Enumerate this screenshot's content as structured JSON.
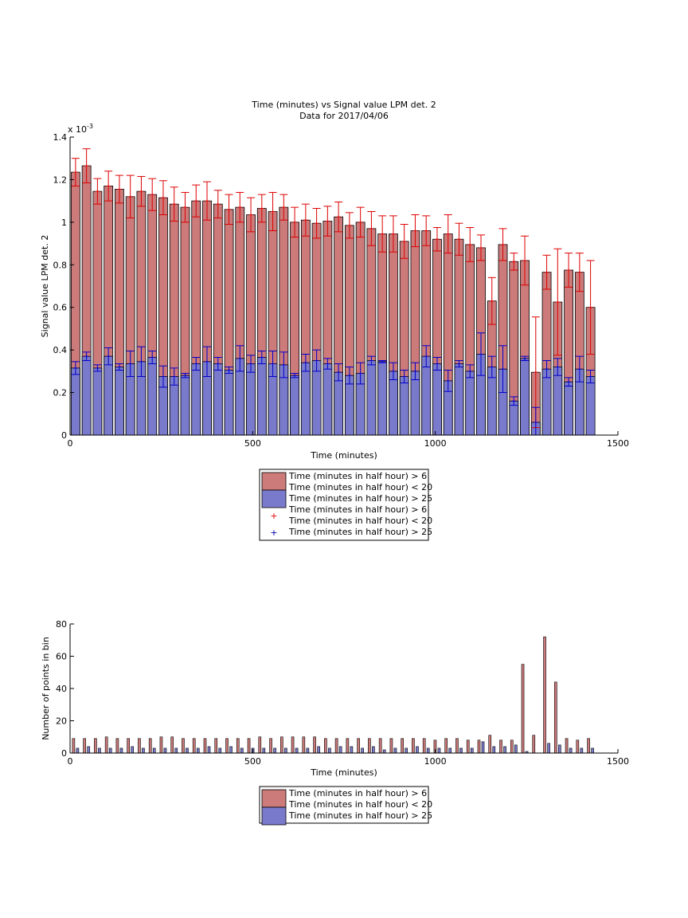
{
  "figure": {
    "title_line1": "Time (minutes) vs Signal value LPM det. 2",
    "title_line2": "Data for 2017/04/06"
  },
  "chart_data": [
    {
      "type": "bar",
      "title": "Time (minutes) vs Signal value LPM det. 2",
      "subtitle": "Data for 2017/04/06",
      "xlabel": "Time (minutes)",
      "ylabel": "Signal value LPM det. 2",
      "exponent_label": "x 10",
      "exponent_power": "-3",
      "xlim": [
        0,
        1500
      ],
      "ylim": [
        0,
        1.4
      ],
      "xticks": [
        "0",
        "500",
        "1000",
        "1500"
      ],
      "yticks": [
        "0",
        "0.2",
        "0.4",
        "0.6",
        "0.8",
        "1",
        "1.2",
        "1.4"
      ],
      "legend_placement": "below",
      "legend": [
        "Time (minutes in half hour) > 6",
        "Time (minutes in half hour) < 20",
        "Time (minutes in half hour) > 25",
        "Time (minutes in half hour) > 6",
        "Time (minutes in half hour) < 20",
        "Time (minutes in half hour) > 25"
      ],
      "x": [
        15,
        45,
        75,
        105,
        135,
        165,
        195,
        225,
        255,
        285,
        315,
        345,
        375,
        405,
        435,
        465,
        495,
        525,
        555,
        585,
        615,
        645,
        675,
        705,
        735,
        765,
        795,
        825,
        855,
        885,
        915,
        945,
        975,
        1005,
        1035,
        1065,
        1095,
        1125,
        1155,
        1185,
        1215,
        1245,
        1275,
        1305,
        1335,
        1365,
        1395,
        1425
      ],
      "series": [
        {
          "name": "Time (minutes in half hour) > 6",
          "color": "#cc7a7a",
          "values": [
            1.235,
            1.265,
            1.145,
            1.17,
            1.155,
            1.12,
            1.145,
            1.13,
            1.115,
            1.085,
            1.07,
            1.1,
            1.1,
            1.085,
            1.06,
            1.07,
            1.035,
            1.065,
            1.05,
            1.07,
            1.0,
            1.01,
            0.995,
            1.005,
            1.025,
            0.985,
            1.0,
            0.97,
            0.945,
            0.945,
            0.91,
            0.96,
            0.96,
            0.92,
            0.945,
            0.92,
            0.895,
            0.88,
            0.63,
            0.895,
            0.815,
            0.82,
            0.295,
            0.765,
            0.625,
            0.775,
            0.765,
            0.6
          ],
          "error": [
            0.065,
            0.08,
            0.06,
            0.07,
            0.065,
            0.1,
            0.07,
            0.075,
            0.08,
            0.08,
            0.07,
            0.075,
            0.09,
            0.065,
            0.07,
            0.07,
            0.08,
            0.065,
            0.09,
            0.06,
            0.07,
            0.075,
            0.07,
            0.07,
            0.07,
            0.06,
            0.07,
            0.08,
            0.085,
            0.085,
            0.08,
            0.075,
            0.07,
            0.055,
            0.09,
            0.075,
            0.08,
            0.06,
            0.11,
            0.075,
            0.04,
            0.115,
            0.26,
            0.08,
            0.25,
            0.08,
            0.09,
            0.22
          ]
        },
        {
          "name": "Time (minutes in half hour) > 25",
          "color": "#7a7acc",
          "values": [
            0.315,
            0.37,
            0.315,
            0.37,
            0.32,
            0.335,
            0.345,
            0.365,
            0.275,
            0.275,
            0.28,
            0.335,
            0.345,
            0.335,
            0.305,
            0.36,
            0.335,
            0.365,
            0.335,
            0.33,
            0.28,
            0.34,
            0.35,
            0.335,
            0.295,
            0.28,
            0.29,
            0.35,
            0.345,
            0.3,
            0.275,
            0.3,
            0.37,
            0.335,
            0.255,
            0.335,
            0.3,
            0.38,
            0.32,
            0.31,
            0.16,
            0.36,
            0.06,
            0.31,
            0.32,
            0.25,
            0.31,
            0.275
          ],
          "error": [
            0.03,
            0.02,
            0.015,
            0.04,
            0.015,
            0.06,
            0.07,
            0.03,
            0.05,
            0.04,
            0.01,
            0.03,
            0.07,
            0.03,
            0.015,
            0.06,
            0.04,
            0.03,
            0.06,
            0.06,
            0.01,
            0.04,
            0.05,
            0.025,
            0.04,
            0.04,
            0.05,
            0.02,
            0.005,
            0.04,
            0.03,
            0.04,
            0.05,
            0.03,
            0.05,
            0.015,
            0.03,
            0.1,
            0.05,
            0.11,
            0.02,
            0.01,
            0.07,
            0.04,
            0.04,
            0.02,
            0.06,
            0.03
          ]
        }
      ]
    },
    {
      "type": "bar",
      "xlabel": "Time (minutes)",
      "ylabel": "Number of points in bin",
      "xlim": [
        0,
        1500
      ],
      "ylim": [
        0,
        80
      ],
      "xticks": [
        "0",
        "500",
        "1000",
        "1500"
      ],
      "yticks": [
        "0",
        "20",
        "40",
        "60",
        "80"
      ],
      "legend_placement": "below",
      "legend": [
        "Time (minutes in half hour) > 6",
        "Time (minutes in half hour) < 20",
        "Time (minutes in half hour) > 25"
      ],
      "x": [
        15,
        45,
        75,
        105,
        135,
        165,
        195,
        225,
        255,
        285,
        315,
        345,
        375,
        405,
        435,
        465,
        495,
        525,
        555,
        585,
        615,
        645,
        675,
        705,
        735,
        765,
        795,
        825,
        855,
        885,
        915,
        945,
        975,
        1005,
        1035,
        1065,
        1095,
        1125,
        1155,
        1185,
        1215,
        1245,
        1275,
        1305,
        1335,
        1365,
        1395,
        1425
      ],
      "series": [
        {
          "name": "Time (minutes in half hour) > 6",
          "color": "#cc7a7a",
          "values": [
            9,
            9,
            9,
            10,
            9,
            9,
            9,
            9,
            10,
            10,
            9,
            9,
            9,
            9,
            9,
            9,
            9,
            10,
            9,
            10,
            10,
            10,
            10,
            9,
            9,
            9,
            9,
            9,
            9,
            9,
            9,
            9,
            9,
            8,
            9,
            9,
            8,
            8,
            11,
            8,
            8,
            55,
            11,
            72,
            44,
            9,
            8,
            9
          ]
        },
        {
          "name": "Time (minutes in half hour) > 25",
          "color": "#7a7acc",
          "values": [
            3,
            4,
            3,
            3,
            3,
            4,
            3,
            3,
            3,
            3,
            3,
            3,
            4,
            3,
            4,
            3,
            3,
            3,
            3,
            3,
            3,
            3,
            4,
            3,
            4,
            4,
            3,
            4,
            2,
            3,
            3,
            4,
            3,
            3,
            3,
            3,
            3,
            7,
            4,
            4,
            5,
            1,
            0,
            6,
            5,
            3,
            3,
            3
          ]
        }
      ]
    }
  ]
}
